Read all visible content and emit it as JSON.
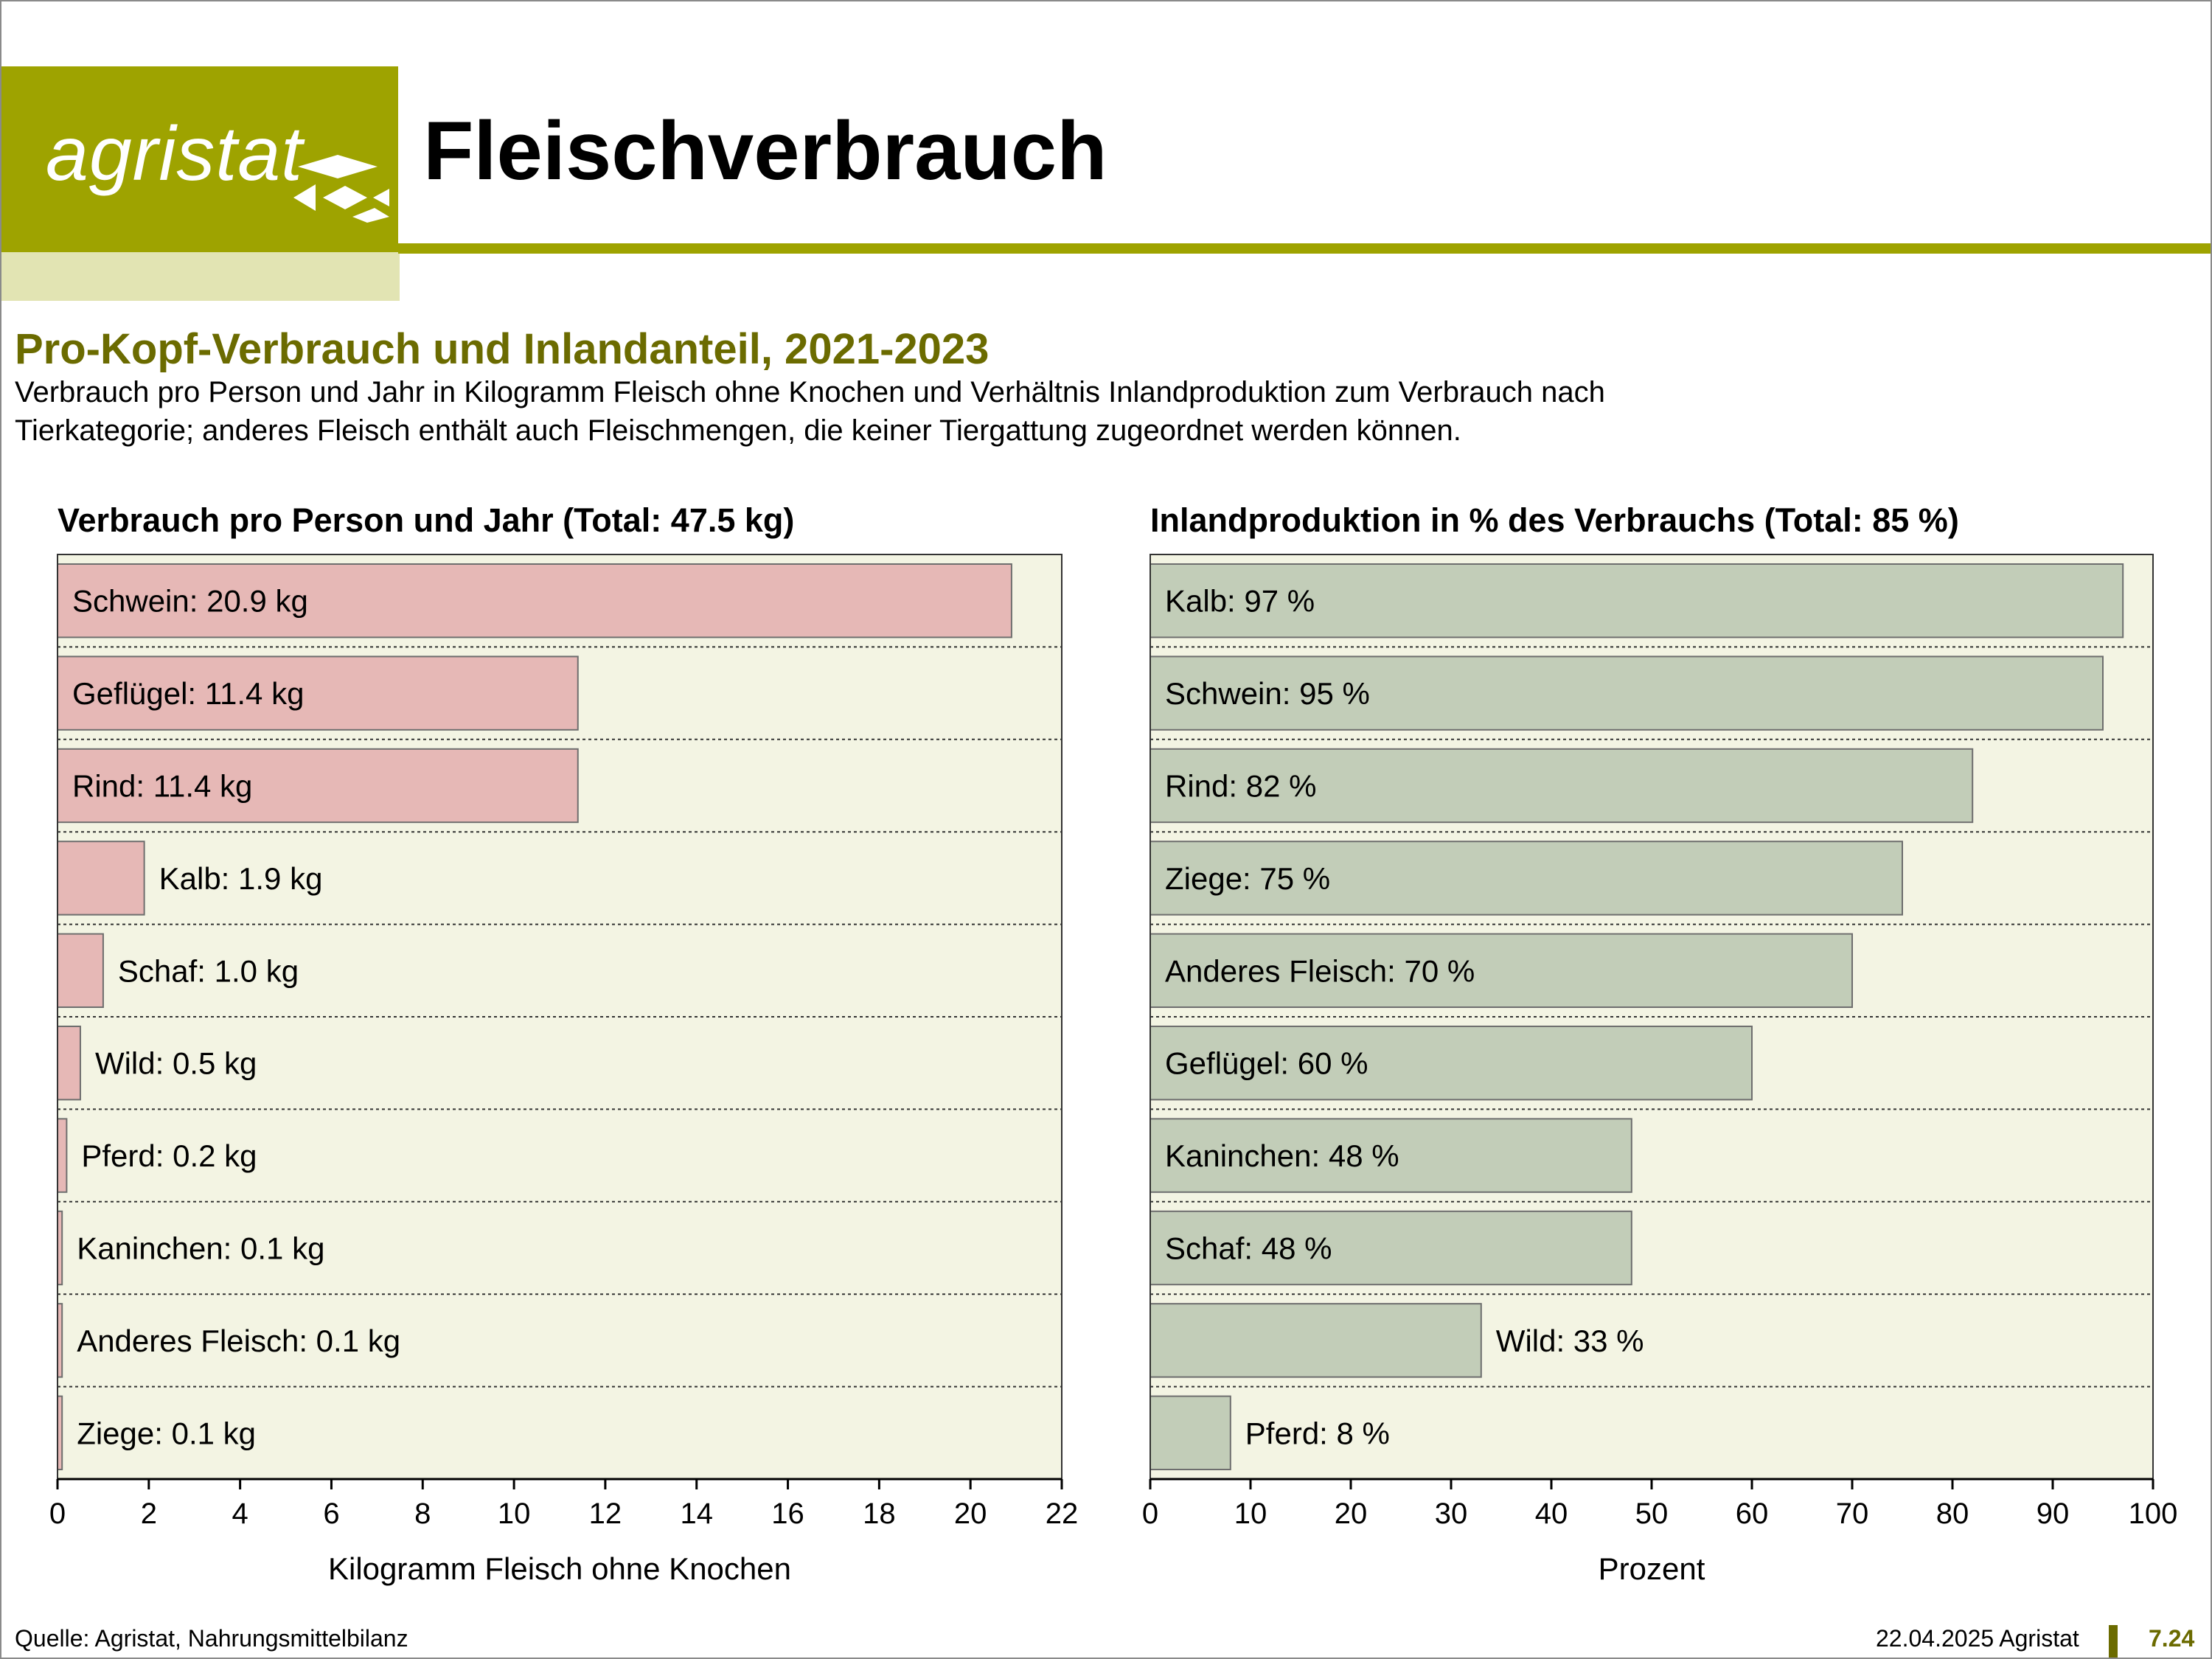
{
  "logo": {
    "text": "agristat"
  },
  "page_title": "Fleischverbrauch",
  "section_title": "Pro-Kopf-Verbrauch und Inlandanteil, 2021-2023",
  "subtitle": [
    "Verbrauch pro Person und Jahr in Kilogramm Fleisch ohne Knochen und Verhältnis Inlandproduktion zum Verbrauch nach",
    "Tierkategorie; anderes Fleisch enthält auch Fleischmengen, die keiner Tiergattung zugeordnet werden können."
  ],
  "colors": {
    "brand": "#9ea300",
    "brand_light": "#e2e4b3",
    "heading": "#6b6b00",
    "plot_bg": "#f3f4e3",
    "bar_left": "#e6b8b6",
    "bar_right": "#c2cdb8",
    "bar_border": "#6e6e6e"
  },
  "chart_data": [
    {
      "type": "bar",
      "orientation": "horizontal",
      "title": "Verbrauch pro Person und Jahr (Total: 47.5 kg)",
      "xlabel": "Kilogramm Fleisch ohne Knochen",
      "xlim": [
        0,
        22
      ],
      "xticks": [
        0,
        2,
        4,
        6,
        8,
        10,
        12,
        14,
        16,
        18,
        20,
        22
      ],
      "categories": [
        "Schwein",
        "Geflügel",
        "Rind",
        "Kalb",
        "Schaf",
        "Wild",
        "Pferd",
        "Kaninchen",
        "Anderes Fleisch",
        "Ziege"
      ],
      "values": [
        20.9,
        11.4,
        11.4,
        1.9,
        1.0,
        0.5,
        0.2,
        0.1,
        0.1,
        0.1
      ],
      "labels": [
        "Schwein: 20.9 kg",
        "Geflügel: 11.4 kg",
        "Rind: 11.4 kg",
        "Kalb: 1.9 kg",
        "Schaf: 1.0 kg",
        "Wild: 0.5 kg",
        "Pferd: 0.2 kg",
        "Kaninchen: 0.1 kg",
        "Anderes Fleisch: 0.1 kg",
        "Ziege: 0.1 kg"
      ],
      "grid": "dotted row separators"
    },
    {
      "type": "bar",
      "orientation": "horizontal",
      "title": "Inlandproduktion in % des Verbrauchs (Total: 85 %)",
      "xlabel": "Prozent",
      "xlim": [
        0,
        100
      ],
      "xticks": [
        0,
        10,
        20,
        30,
        40,
        50,
        60,
        70,
        80,
        90,
        100
      ],
      "categories": [
        "Kalb",
        "Schwein",
        "Rind",
        "Ziege",
        "Anderes Fleisch",
        "Geflügel",
        "Kaninchen",
        "Schaf",
        "Wild",
        "Pferd"
      ],
      "values": [
        97,
        95,
        82,
        75,
        70,
        60,
        48,
        48,
        33,
        8
      ],
      "labels": [
        "Kalb: 97 %",
        "Schwein: 95 %",
        "Rind: 82 %",
        "Ziege: 75 %",
        "Anderes Fleisch: 70 %",
        "Geflügel: 60 %",
        "Kaninchen: 48 %",
        "Schaf: 48 %",
        "Wild: 33 %",
        "Pferd: 8 %"
      ],
      "grid": "dotted row separators"
    }
  ],
  "footer": {
    "source": "Quelle: Agristat, Nahrungsmittelbilanz",
    "date": "22.04.2025 Agristat",
    "page": "7.24"
  }
}
